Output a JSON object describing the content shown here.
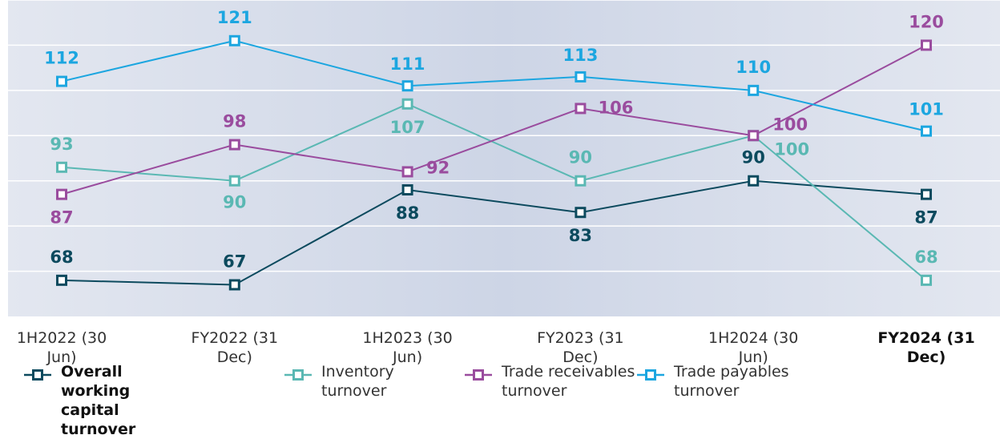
{
  "chart_data": {
    "type": "line",
    "categories": [
      "1H2022 (30 Jun)",
      "FY2022 (31 Dec)",
      "1H2023 (30 Jun)",
      "FY2023 (31 Dec)",
      "1H2024 (30 Jun)",
      "FY2024 (31 Dec)"
    ],
    "highlight_index": 5,
    "series": [
      {
        "name": "Overall working capital turnover",
        "color": "#0c4a5e",
        "values": [
          68,
          67,
          88,
          83,
          90,
          87
        ]
      },
      {
        "name": "Inventory turnover",
        "color": "#5ab8b3",
        "values": [
          93,
          90,
          107,
          90,
          100,
          68
        ]
      },
      {
        "name": "Trade receivables turnover",
        "color": "#9a4c9e",
        "values": [
          87,
          98,
          92,
          106,
          100,
          120
        ]
      },
      {
        "name": "Trade payables turnover",
        "color": "#1ca6e0",
        "values": [
          112,
          121,
          111,
          113,
          110,
          101
        ]
      }
    ],
    "ylim": [
      60,
      130
    ],
    "yticks": [
      70,
      80,
      90,
      100,
      110,
      120,
      130
    ],
    "grid": true
  }
}
